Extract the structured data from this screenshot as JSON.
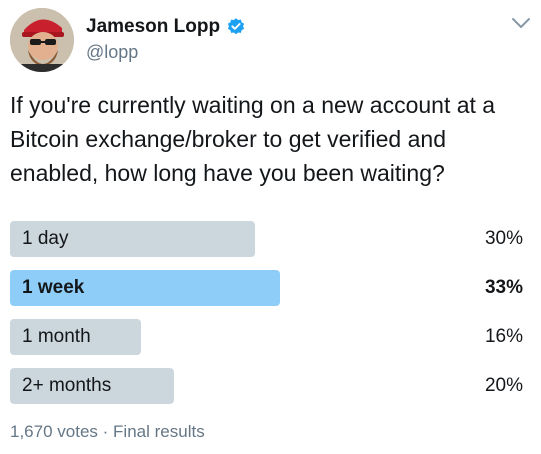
{
  "author": {
    "display_name": "Jameson Lopp",
    "handle": "@lopp",
    "verified": true
  },
  "tweet": {
    "text": "If you're currently waiting on a new account at a Bitcoin exchange/broker to get verified and enabled, how long have you been waiting?"
  },
  "poll": {
    "options": [
      {
        "label": "1 day",
        "percent_text": "30%",
        "percent": 30,
        "winner": false
      },
      {
        "label": "1 week",
        "percent_text": "33%",
        "percent": 33,
        "winner": true
      },
      {
        "label": "1 month",
        "percent_text": "16%",
        "percent": 16,
        "winner": false
      },
      {
        "label": "2+ months",
        "percent_text": "20%",
        "percent": 20,
        "winner": false
      }
    ],
    "votes_text": "1,670 votes",
    "separator": "·",
    "status_text": "Final results"
  },
  "colors": {
    "bar": "#ccd6dd",
    "winner_bar": "#8ecdf7",
    "verified_badge": "#1da1f2",
    "muted_text": "#657786"
  },
  "icons": {
    "verified": "verified-badge-icon",
    "menu": "chevron-down-icon"
  }
}
